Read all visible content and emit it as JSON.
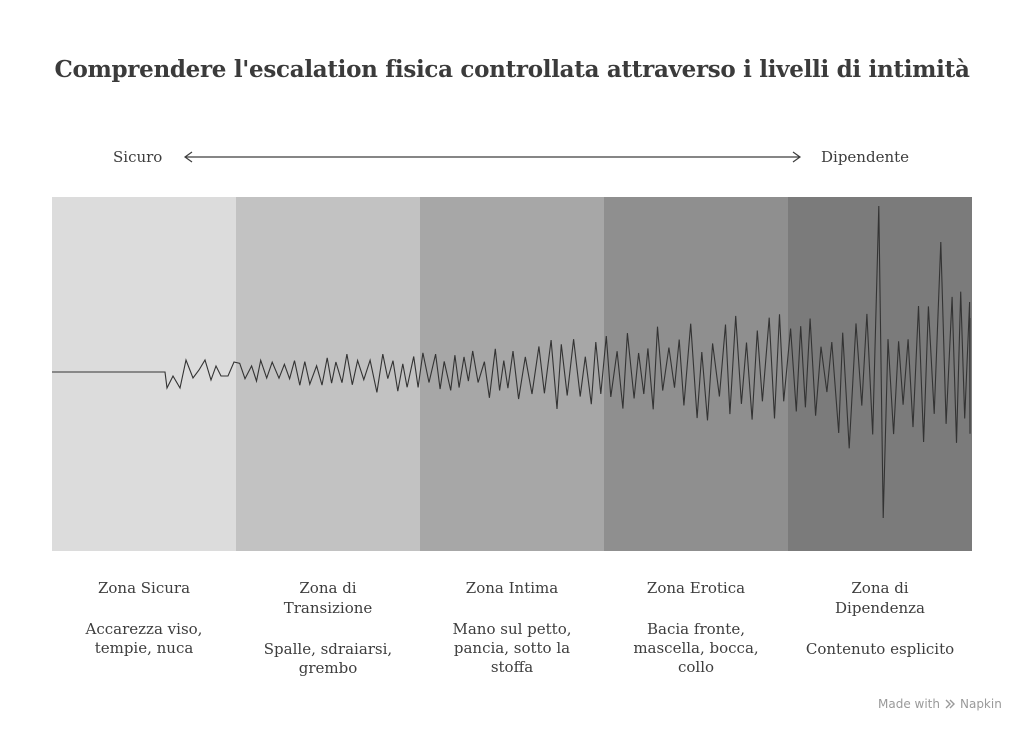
{
  "title": "Comprendere l'escalation fisica controllata attraverso i livelli di intimità",
  "axis": {
    "left_label": "Sicuro",
    "right_label": "Dipendente"
  },
  "zones": [
    {
      "name": "Zona Sicura",
      "description": "Accarezza viso, tempie, nuca",
      "color": "#dcdcdc"
    },
    {
      "name": "Zona di Transizione",
      "description": "Spalle, sdraiarsi, grembo",
      "color": "#c2c2c2"
    },
    {
      "name": "Zona Intima",
      "description": "Mano sul petto, pancia, sotto la stoffa",
      "color": "#a7a7a7"
    },
    {
      "name": "Zona Erotica",
      "description": "Bacia fronte, mascella, bocca, collo",
      "color": "#8f8f8f"
    },
    {
      "name": "Zona di Dipendenza",
      "description": "Contenuto esplicito",
      "color": "#7b7b7b"
    }
  ],
  "waveform_color": "#333333",
  "footer": {
    "made_with": "Made with",
    "brand": "Napkin",
    "brand_icon": "napkin-logo-icon"
  }
}
